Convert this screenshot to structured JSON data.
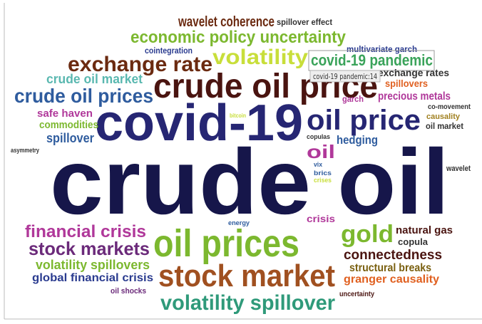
{
  "words": [
    {
      "text": "wavelet coherence",
      "color": "#6b2a10"
    },
    {
      "text": "spillover effect",
      "color": "#333333"
    },
    {
      "text": "economic policy uncertainty",
      "color": "#7cb82f"
    },
    {
      "text": "multivariate garch",
      "color": "#2a3b8f"
    },
    {
      "text": "cointegration",
      "color": "#2a3b8f"
    },
    {
      "text": "exchange rate",
      "color": "#6b2a10"
    },
    {
      "text": "volatility",
      "color": "#c8de3a"
    },
    {
      "text": "covid-19 pandemic",
      "color": "#3aa35a"
    },
    {
      "text": "exchange rates",
      "color": "#333333"
    },
    {
      "text": "crude oil market",
      "color": "#5ab8b0"
    },
    {
      "text": "crude oil price",
      "color": "#4a1410"
    },
    {
      "text": "spillovers",
      "color": "#e06020"
    },
    {
      "text": "crude oil prices",
      "color": "#2f5c9e"
    },
    {
      "text": "precious metals",
      "color": "#b0389a"
    },
    {
      "text": "garch",
      "color": "#b0389a"
    },
    {
      "text": "co-movement",
      "color": "#333333"
    },
    {
      "text": "safe haven",
      "color": "#b0389a"
    },
    {
      "text": "covid-19",
      "color": "#262673"
    },
    {
      "text": "bitcoin",
      "color": "#c8de3a"
    },
    {
      "text": "oil price",
      "color": "#262673"
    },
    {
      "text": "causality",
      "color": "#a08020"
    },
    {
      "text": "oil market",
      "color": "#333333"
    },
    {
      "text": "commodities",
      "color": "#7cb82f"
    },
    {
      "text": "spillover",
      "color": "#2f5c9e"
    },
    {
      "text": "copulas",
      "color": "#333333"
    },
    {
      "text": "hedging",
      "color": "#2f5c9e"
    },
    {
      "text": "asymmetry",
      "color": "#333333"
    },
    {
      "text": "oil",
      "color": "#b0389a"
    },
    {
      "text": "crude oil",
      "color": "#16164a"
    },
    {
      "text": "wavelet",
      "color": "#333333"
    },
    {
      "text": "vix",
      "color": "#2f5c9e"
    },
    {
      "text": "brics",
      "color": "#2f5c9e"
    },
    {
      "text": "crises",
      "color": "#c8de3a"
    },
    {
      "text": "energy",
      "color": "#2f5c9e"
    },
    {
      "text": "crisis",
      "color": "#b0389a"
    },
    {
      "text": "financial crisis",
      "color": "#b0389a"
    },
    {
      "text": "oil prices",
      "color": "#7cb82f"
    },
    {
      "text": "gold",
      "color": "#7cb82f"
    },
    {
      "text": "natural gas",
      "color": "#4a1410"
    },
    {
      "text": "copula",
      "color": "#333333"
    },
    {
      "text": "stock markets",
      "color": "#6b2a7a"
    },
    {
      "text": "connectedness",
      "color": "#4a1410"
    },
    {
      "text": "volatility spillovers",
      "color": "#7cb82f"
    },
    {
      "text": "structural breaks",
      "color": "#7a6010"
    },
    {
      "text": "stock market",
      "color": "#a05020"
    },
    {
      "text": "global financial crisis",
      "color": "#2a3b8f"
    },
    {
      "text": "granger causality",
      "color": "#e06020"
    },
    {
      "text": "oil shocks",
      "color": "#6b2a7a"
    },
    {
      "text": "uncertainty",
      "color": "#4a1410"
    },
    {
      "text": "volatility spillover",
      "color": "#2f9a7a"
    }
  ],
  "tooltip": "covid-19 pandemic:14"
}
